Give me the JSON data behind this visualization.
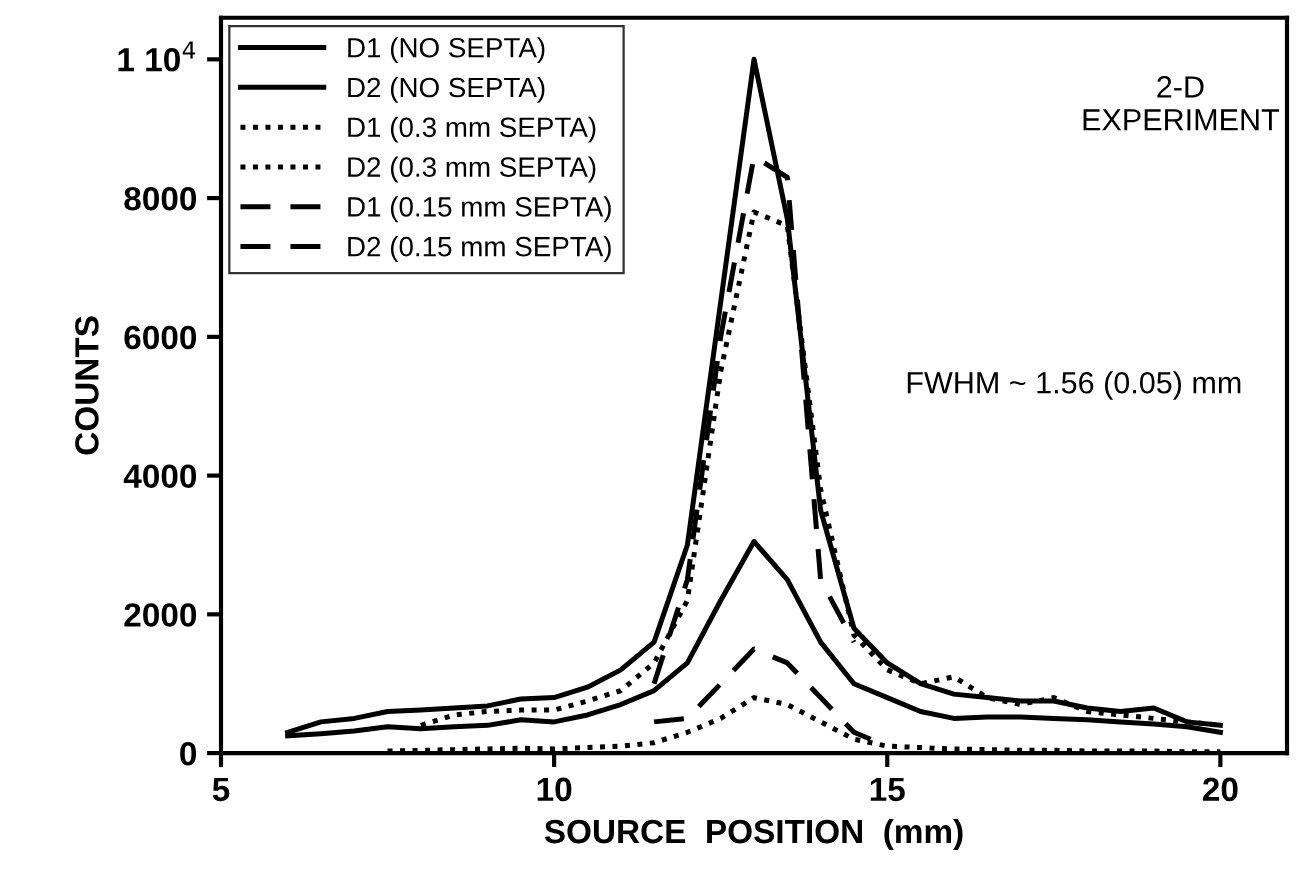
{
  "chart_data": {
    "type": "line",
    "xlabel": "SOURCE  POSITION  (mm)",
    "ylabel": "COUNTS",
    "x": [
      6,
      6.5,
      7,
      7.5,
      8,
      8.5,
      9,
      9.5,
      10,
      10.5,
      11,
      11.5,
      12,
      12.5,
      13,
      13.5,
      14,
      14.5,
      15,
      15.5,
      16,
      16.5,
      17,
      17.5,
      18,
      18.5,
      19,
      19.5,
      20
    ],
    "series": [
      {
        "name": "D1 (NO SEPTA)",
        "color": "#000000",
        "line_style": "solid",
        "values": [
          300,
          450,
          500,
          600,
          620,
          650,
          680,
          780,
          800,
          950,
          1200,
          1600,
          3000,
          6500,
          10000,
          7700,
          3500,
          1800,
          1300,
          1000,
          850,
          800,
          750,
          750,
          650,
          600,
          650,
          450,
          400
        ]
      },
      {
        "name": "D2 (NO SEPTA)",
        "color": "#000000",
        "line_style": "solid",
        "values": [
          250,
          280,
          320,
          380,
          350,
          380,
          400,
          480,
          450,
          550,
          700,
          900,
          1300,
          2200,
          3050,
          2500,
          1600,
          1000,
          800,
          600,
          500,
          520,
          520,
          500,
          480,
          450,
          420,
          380,
          300
        ]
      },
      {
        "name": "D1 (0.3 mm SEPTA)",
        "color": "#000000",
        "line_style": "dotted",
        "values": [
          null,
          null,
          null,
          null,
          400,
          550,
          600,
          620,
          620,
          750,
          900,
          1300,
          2200,
          5500,
          7800,
          7600,
          3800,
          1700,
          1200,
          1000,
          1100,
          800,
          700,
          800,
          600,
          550,
          500,
          450,
          400
        ]
      },
      {
        "name": "D2 (0.3 mm SEPTA)",
        "color": "#000000",
        "line_style": "dotted",
        "values": [
          null,
          null,
          null,
          30,
          40,
          50,
          60,
          70,
          60,
          80,
          100,
          150,
          300,
          500,
          800,
          700,
          450,
          200,
          100,
          80,
          60,
          50,
          40,
          40,
          30,
          30,
          30,
          20,
          20
        ]
      },
      {
        "name": "D1 (0.15 mm SEPTA)",
        "color": "#000000",
        "line_style": "dashed",
        "values": [
          null,
          null,
          null,
          null,
          null,
          null,
          null,
          null,
          null,
          null,
          null,
          1000,
          2500,
          6000,
          8600,
          8300,
          2500,
          1600,
          null,
          null,
          null,
          null,
          null,
          null,
          null,
          null,
          null,
          null,
          null
        ]
      },
      {
        "name": "D2 (0.15 mm SEPTA)",
        "color": "#000000",
        "line_style": "dashed",
        "values": [
          null,
          null,
          null,
          null,
          null,
          null,
          null,
          null,
          null,
          null,
          null,
          450,
          500,
          1000,
          1500,
          1300,
          800,
          300,
          100,
          null,
          null,
          null,
          null,
          null,
          null,
          null,
          null,
          null,
          null
        ]
      }
    ],
    "xlim": [
      5,
      21
    ],
    "xticks": [
      5,
      10,
      15,
      20
    ],
    "ylim": [
      0,
      10600
    ],
    "yticks": [
      0,
      2000,
      4000,
      6000,
      8000,
      {
        "value": 10000,
        "label": "1 10$^{4}$"
      }
    ],
    "annotations": [
      "2-D\nEXPERIMENT",
      "FWHM ~ 1.56 (0.05) mm"
    ],
    "legend": "top left",
    "grid": false,
    "marker": "none"
  }
}
